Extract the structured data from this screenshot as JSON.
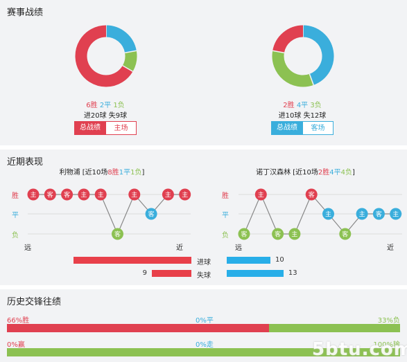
{
  "stats": {
    "title": "赛事战绩",
    "left": {
      "wins": "6胜",
      "draws": "2平",
      "losses": "1负",
      "goals": "进20球 失9球",
      "tab_active": "总战绩",
      "tab_inactive": "主场",
      "record": {
        "win": 6,
        "draw": 2,
        "loss": 1
      }
    },
    "right": {
      "wins": "2胜",
      "draws": "4平",
      "losses": "3负",
      "goals": "进10球 失12球",
      "tab_active": "总战绩",
      "tab_inactive": "客场",
      "record": {
        "win": 2,
        "draw": 4,
        "loss": 3
      }
    }
  },
  "recent": {
    "title": "近期表现",
    "left": {
      "team": "利物浦",
      "summary_prefix": " [近10场",
      "w": "8胜",
      "d": "1平",
      "l": "1负",
      "suffix": "]",
      "results": [
        "W",
        "W",
        "W",
        "W",
        "W",
        "L",
        "W",
        "D",
        "W",
        "W"
      ],
      "labels": [
        "主",
        "客",
        "客",
        "主",
        "主",
        "客",
        "主",
        "客",
        "主",
        "主"
      ]
    },
    "right": {
      "team": "诺丁汉森林",
      "summary_prefix": " [近10场",
      "w": "2胜",
      "d": "4平",
      "l": "4负",
      "suffix": "]",
      "results": [
        "L",
        "W",
        "L",
        "L",
        "W",
        "D",
        "L",
        "D",
        "D",
        "D"
      ],
      "labels": [
        "客",
        "主",
        "客",
        "主",
        "客",
        "主",
        "客",
        "主",
        "客",
        "主"
      ]
    },
    "axis": {
      "win": "胜",
      "draw": "平",
      "loss": "负",
      "far": "远",
      "near": "近"
    },
    "goals_for": {
      "label": "进球",
      "left": 27,
      "right": 10
    },
    "goals_against": {
      "label": "失球",
      "left": 9,
      "right": 13
    }
  },
  "history": {
    "title": "历史交锋往绩",
    "row1": {
      "left": "66%胜",
      "mid": "0%平",
      "right": "33%负",
      "win_pct": 66,
      "draw_pct": 0,
      "loss_pct": 33
    },
    "row2": {
      "left": "0%赢",
      "mid": "0%走",
      "right": "100%输",
      "win_pct": 0,
      "draw_pct": 0,
      "loss_pct": 100
    }
  },
  "watermark": "5btu.com",
  "colors": {
    "win": "#e04050",
    "draw": "#3aaedc",
    "loss": "#8cc152"
  }
}
